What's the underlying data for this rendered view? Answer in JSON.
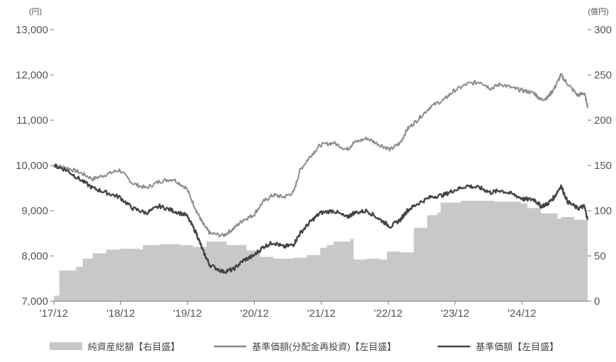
{
  "chart_data": {
    "type": "area+line",
    "title": "",
    "left_axis_unit": "(円)",
    "right_axis_unit": "(億円)",
    "left_ylim": [
      7000,
      13000
    ],
    "right_ylim": [
      0,
      300
    ],
    "left_ticks": [
      "7,000",
      "8,000",
      "9,000",
      "10,000",
      "11,000",
      "12,000",
      "13,000"
    ],
    "left_tick_values": [
      7000,
      8000,
      9000,
      10000,
      11000,
      12000,
      13000
    ],
    "right_ticks": [
      "0",
      "50",
      "100",
      "150",
      "200",
      "250",
      "300"
    ],
    "right_tick_values": [
      0,
      50,
      100,
      150,
      200,
      250,
      300
    ],
    "x_labels": [
      "'17/12",
      "'18/12",
      "'19/12",
      "'20/12",
      "'21/12",
      "'22/12",
      "'23/12",
      "'24/12"
    ],
    "x_label_values": [
      2017.917,
      2018.917,
      2019.917,
      2020.917,
      2021.917,
      2022.917,
      2023.917,
      2024.917
    ],
    "xlim": [
      2017.917,
      2025.9
    ],
    "grid": false,
    "legend_position": "bottom",
    "series": [
      {
        "name": "純資産総額【右目盛】",
        "axis": "right",
        "kind": "area",
        "color": "#c8c8c8",
        "x": [
          2017.92,
          2017.98,
          2018.0,
          2018.2,
          2018.25,
          2018.35,
          2018.5,
          2018.7,
          2018.9,
          2019.0,
          2019.2,
          2019.25,
          2019.5,
          2019.8,
          2020.0,
          2020.2,
          2020.5,
          2020.8,
          2021.0,
          2021.2,
          2021.5,
          2021.7,
          2021.9,
          2022.0,
          2022.1,
          2022.35,
          2022.4,
          2022.55,
          2022.6,
          2022.8,
          2022.9,
          2023.1,
          2023.3,
          2023.5,
          2023.65,
          2023.7,
          2024.0,
          2024.5,
          2024.9,
          2025.0,
          2025.2,
          2025.45,
          2025.5,
          2025.7,
          2025.9
        ],
        "values": [
          6,
          6,
          34,
          34,
          38,
          47,
          53,
          57,
          58,
          58,
          57,
          62,
          63,
          62,
          60,
          66,
          62,
          56,
          49,
          47,
          48,
          51,
          59,
          62,
          66,
          69,
          46,
          46,
          47,
          46,
          55,
          54,
          81,
          95,
          98,
          109,
          111,
          110,
          108,
          103,
          97,
          91,
          93,
          90,
          88
        ]
      },
      {
        "name": "基準価額(分配金再投資)【左目盛】",
        "axis": "left",
        "kind": "line",
        "color": "#8c8c8c",
        "x": [
          2017.92,
          2018.1,
          2018.3,
          2018.5,
          2018.7,
          2018.9,
          2019.1,
          2019.3,
          2019.5,
          2019.7,
          2019.9,
          2020.05,
          2020.15,
          2020.25,
          2020.45,
          2020.6,
          2020.75,
          2020.9,
          2021.05,
          2021.2,
          2021.35,
          2021.5,
          2021.6,
          2021.75,
          2021.9,
          2022.1,
          2022.3,
          2022.4,
          2022.6,
          2022.8,
          2022.95,
          2023.1,
          2023.2,
          2023.35,
          2023.55,
          2023.75,
          2023.9,
          2024.1,
          2024.3,
          2024.45,
          2024.6,
          2024.8,
          2024.95,
          2025.1,
          2025.2,
          2025.3,
          2025.4,
          2025.5,
          2025.6,
          2025.75,
          2025.85,
          2025.9
        ],
        "values": [
          10000,
          9950,
          9850,
          9700,
          9800,
          9900,
          9600,
          9500,
          9650,
          9700,
          9500,
          9000,
          8700,
          8500,
          8450,
          8600,
          8800,
          8900,
          9200,
          9350,
          9300,
          9400,
          9900,
          10200,
          10450,
          10500,
          10350,
          10500,
          10600,
          10450,
          10350,
          10500,
          10800,
          11000,
          11300,
          11450,
          11650,
          11800,
          11850,
          11700,
          11800,
          11700,
          11650,
          11600,
          11450,
          11500,
          11700,
          12000,
          11800,
          11550,
          11600,
          11300
        ]
      },
      {
        "name": "基準価額【左目盛】",
        "axis": "left",
        "kind": "line",
        "color": "#444444",
        "x": [
          2017.92,
          2018.1,
          2018.3,
          2018.5,
          2018.7,
          2018.9,
          2019.1,
          2019.3,
          2019.5,
          2019.7,
          2019.9,
          2020.05,
          2020.15,
          2020.25,
          2020.45,
          2020.6,
          2020.75,
          2020.9,
          2021.05,
          2021.2,
          2021.35,
          2021.5,
          2021.6,
          2021.75,
          2021.9,
          2022.1,
          2022.3,
          2022.4,
          2022.6,
          2022.8,
          2022.95,
          2023.1,
          2023.2,
          2023.35,
          2023.55,
          2023.75,
          2023.9,
          2024.1,
          2024.3,
          2024.45,
          2024.6,
          2024.8,
          2024.95,
          2025.1,
          2025.2,
          2025.3,
          2025.4,
          2025.5,
          2025.6,
          2025.75,
          2025.85,
          2025.9
        ],
        "values": [
          10000,
          9900,
          9700,
          9500,
          9400,
          9300,
          9050,
          8950,
          9100,
          9000,
          8900,
          8500,
          8100,
          7800,
          7650,
          7700,
          7900,
          8000,
          8200,
          8300,
          8200,
          8250,
          8500,
          8750,
          8950,
          9000,
          8850,
          8950,
          9000,
          8800,
          8650,
          8800,
          9000,
          9150,
          9300,
          9350,
          9450,
          9550,
          9500,
          9400,
          9450,
          9350,
          9250,
          9250,
          9100,
          9150,
          9300,
          9550,
          9200,
          9050,
          9100,
          8800
        ]
      }
    ]
  },
  "legend": [
    {
      "label": "純資産総額【右目盛】",
      "color": "#c8c8c8",
      "kind": "area"
    },
    {
      "label": "基準価額(分配金再投資)【左目盛】",
      "color": "#8c8c8c",
      "kind": "line"
    },
    {
      "label": "基準価額【左目盛】",
      "color": "#444444",
      "kind": "line"
    }
  ]
}
